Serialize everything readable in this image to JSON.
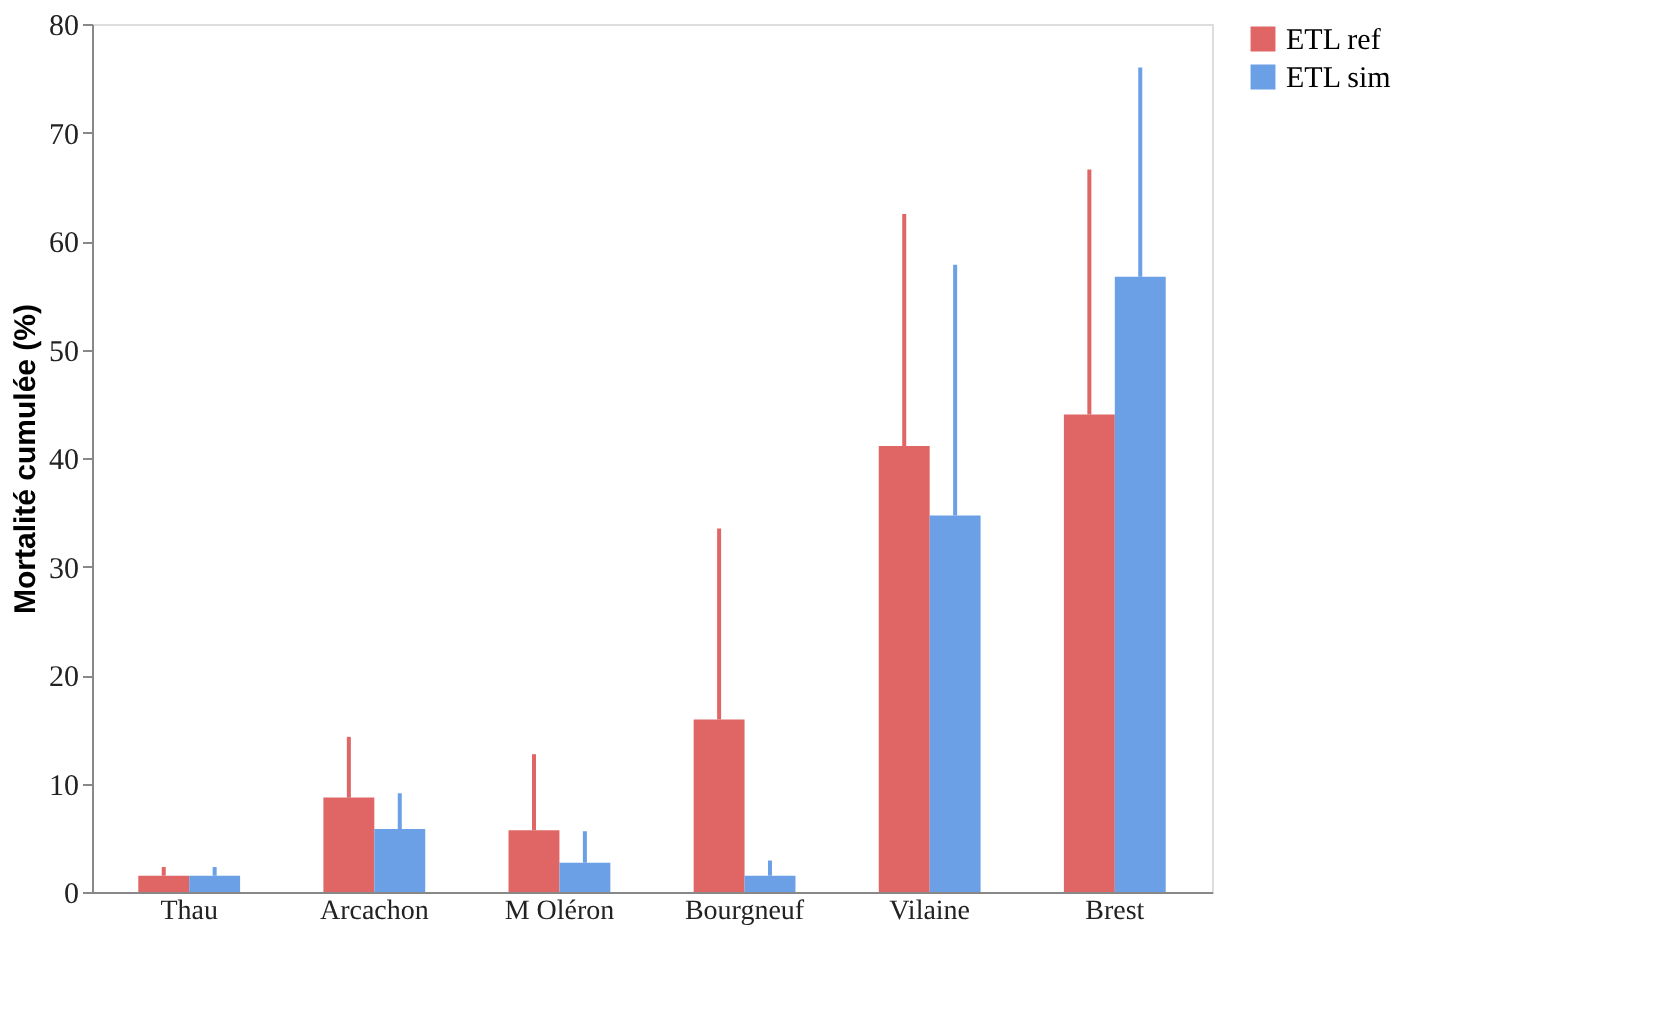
{
  "chart_data": {
    "type": "bar",
    "ylabel": "Mortalité cumulée (%)",
    "categories": [
      "Thau",
      "Arcachon",
      "M Oléron",
      "Bourgneuf",
      "Vilaine",
      "Brest"
    ],
    "series": [
      {
        "name": "ETL ref",
        "color": "#e06666",
        "values": [
          1.5,
          8.7,
          5.7,
          15.9,
          41.1,
          44.0
        ],
        "errors": [
          [
            1.5,
            2.3
          ],
          [
            8.7,
            14.3
          ],
          [
            5.7,
            12.7
          ],
          [
            15.9,
            33.5
          ],
          [
            41.1,
            62.5
          ],
          [
            44.0,
            66.6
          ]
        ]
      },
      {
        "name": "ETL sim",
        "color": "#6b9fe6",
        "values": [
          1.5,
          5.8,
          2.7,
          1.5,
          34.7,
          56.7
        ],
        "errors": [
          [
            1.5,
            2.3
          ],
          [
            5.8,
            9.1
          ],
          [
            2.7,
            5.6
          ],
          [
            1.5,
            2.9
          ],
          [
            34.7,
            57.8
          ],
          [
            56.7,
            76.0
          ]
        ]
      }
    ],
    "ylim": [
      0,
      80
    ],
    "yticks": [
      0,
      10,
      20,
      30,
      40,
      50,
      60,
      70,
      80
    ],
    "grid": false,
    "legend": "right"
  }
}
